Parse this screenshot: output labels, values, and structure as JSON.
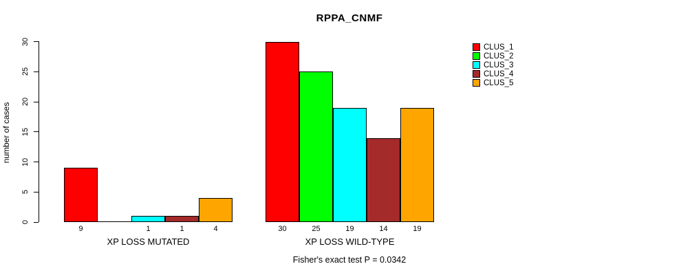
{
  "chart_data": {
    "type": "bar",
    "title": "RPPA_CNMF",
    "ylabel": "number of cases",
    "xlabel": "",
    "footnote": "Fisher's exact test P = 0.0342",
    "ylim": [
      0,
      30
    ],
    "y_ticks": [
      0,
      5,
      10,
      15,
      20,
      25,
      30
    ],
    "grid": false,
    "legend_position": "right",
    "categories": [
      "XP LOSS MUTATED",
      "XP LOSS WILD-TYPE"
    ],
    "series": [
      {
        "name": "CLUS_1",
        "color": "#FF0000",
        "values": [
          9,
          30
        ]
      },
      {
        "name": "CLUS_2",
        "color": "#00FF00",
        "values": [
          0,
          25
        ]
      },
      {
        "name": "CLUS_3",
        "color": "#00FFFF",
        "values": [
          1,
          19
        ]
      },
      {
        "name": "CLUS_4",
        "color": "#A52A2A",
        "values": [
          1,
          14
        ]
      },
      {
        "name": "CLUS_5",
        "color": "#FFA500",
        "values": [
          4,
          19
        ]
      }
    ],
    "bar_value_labels": [
      [
        "9",
        "",
        "1",
        "1",
        "4"
      ],
      [
        "30",
        "25",
        "19",
        "14",
        "19"
      ]
    ]
  }
}
